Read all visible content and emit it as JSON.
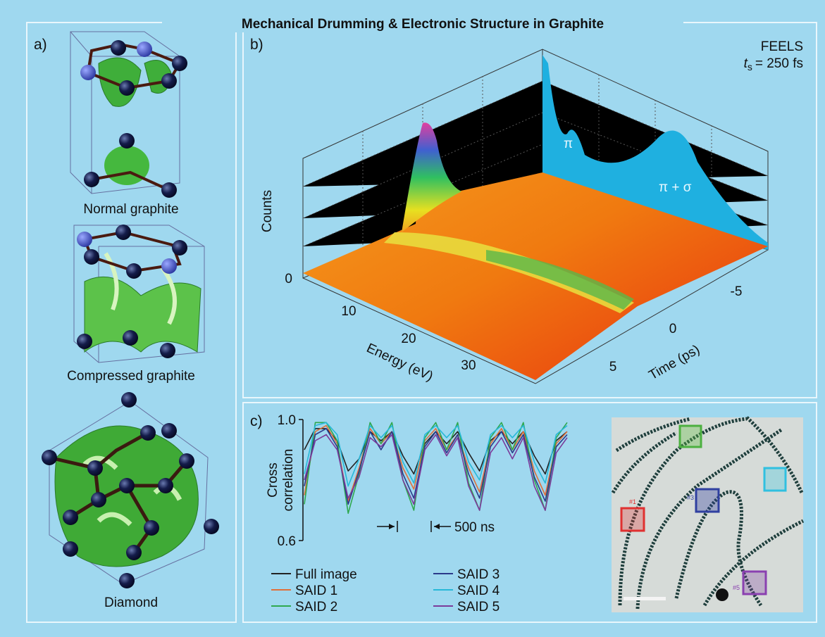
{
  "title": "Mechanical Drumming & Electronic Structure in Graphite",
  "panel_a": {
    "label": "a)",
    "captions": [
      "Normal graphite",
      "Compressed graphite",
      "Diamond"
    ]
  },
  "panel_b": {
    "label": "b)",
    "method": "FEELS",
    "ts_symbol": "t",
    "ts_subscript": "s",
    "ts_value": "= 250 fs",
    "z_label": "Counts",
    "z_tick": "0",
    "energy_ticks": [
      "10",
      "20",
      "30"
    ],
    "energy_label": "Energy (eV)",
    "time_ticks": [
      "5",
      "0",
      "-5"
    ],
    "time_label": "Time (ps)",
    "peak_labels": [
      "π",
      "π + σ"
    ]
  },
  "panel_c": {
    "label": "c)",
    "scale_label": "500 ns",
    "region_labels": [
      "#1",
      "#3",
      "#5"
    ]
  },
  "chart_data": {
    "type": "line",
    "ylabel_lines": [
      "Cross",
      "correlation"
    ],
    "categories": [
      null,
      null,
      null,
      null,
      null,
      null,
      null,
      null,
      null,
      null,
      null,
      null,
      null,
      null,
      null,
      null,
      null,
      null,
      null,
      null,
      null,
      null,
      null,
      null,
      null
    ],
    "ylim": [
      0.6,
      1.0
    ],
    "yticks": [
      {
        "value": 1.0,
        "label": "1.0"
      },
      {
        "value": 0.6,
        "label": "0.6"
      }
    ],
    "series": [
      {
        "name": "Full image",
        "color": "#222222",
        "values": [
          0.9,
          0.97,
          0.97,
          0.93,
          0.83,
          0.87,
          0.96,
          0.93,
          0.96,
          0.88,
          0.82,
          0.92,
          0.96,
          0.92,
          0.96,
          0.89,
          0.83,
          0.93,
          0.96,
          0.92,
          0.96,
          0.88,
          0.82,
          0.93,
          0.96
        ]
      },
      {
        "name": "SAID 1",
        "color": "#e0703a",
        "values": [
          0.75,
          0.96,
          0.98,
          0.92,
          0.73,
          0.84,
          0.97,
          0.92,
          0.96,
          0.84,
          0.77,
          0.93,
          0.97,
          0.9,
          0.95,
          0.84,
          0.76,
          0.92,
          0.97,
          0.9,
          0.96,
          0.83,
          0.75,
          0.92,
          0.96
        ]
      },
      {
        "name": "SAID 2",
        "color": "#2fa84f",
        "values": [
          0.72,
          0.99,
          0.99,
          0.93,
          0.69,
          0.82,
          0.99,
          0.92,
          0.99,
          0.8,
          0.7,
          0.94,
          0.99,
          0.9,
          0.99,
          0.79,
          0.7,
          0.94,
          0.99,
          0.9,
          0.99,
          0.8,
          0.7,
          0.94,
          0.99
        ]
      },
      {
        "name": "SAID 3",
        "color": "#2b3a8a",
        "values": [
          0.78,
          0.95,
          0.97,
          0.91,
          0.72,
          0.83,
          0.96,
          0.9,
          0.96,
          0.82,
          0.74,
          0.91,
          0.96,
          0.89,
          0.95,
          0.82,
          0.74,
          0.91,
          0.96,
          0.89,
          0.95,
          0.81,
          0.73,
          0.91,
          0.95
        ]
      },
      {
        "name": "SAID 4",
        "color": "#27b8d8",
        "values": [
          0.82,
          0.98,
          0.99,
          0.95,
          0.78,
          0.87,
          0.98,
          0.94,
          0.98,
          0.86,
          0.79,
          0.95,
          0.98,
          0.94,
          0.98,
          0.86,
          0.8,
          0.95,
          0.98,
          0.94,
          0.98,
          0.86,
          0.79,
          0.95,
          0.98
        ]
      },
      {
        "name": "SAID 5",
        "color": "#7b3b9a",
        "values": [
          0.8,
          0.93,
          0.95,
          0.9,
          0.74,
          0.81,
          0.94,
          0.91,
          0.95,
          0.8,
          0.72,
          0.9,
          0.95,
          0.88,
          0.94,
          0.78,
          0.7,
          0.89,
          0.94,
          0.87,
          0.94,
          0.78,
          0.7,
          0.89,
          0.94
        ]
      }
    ]
  }
}
